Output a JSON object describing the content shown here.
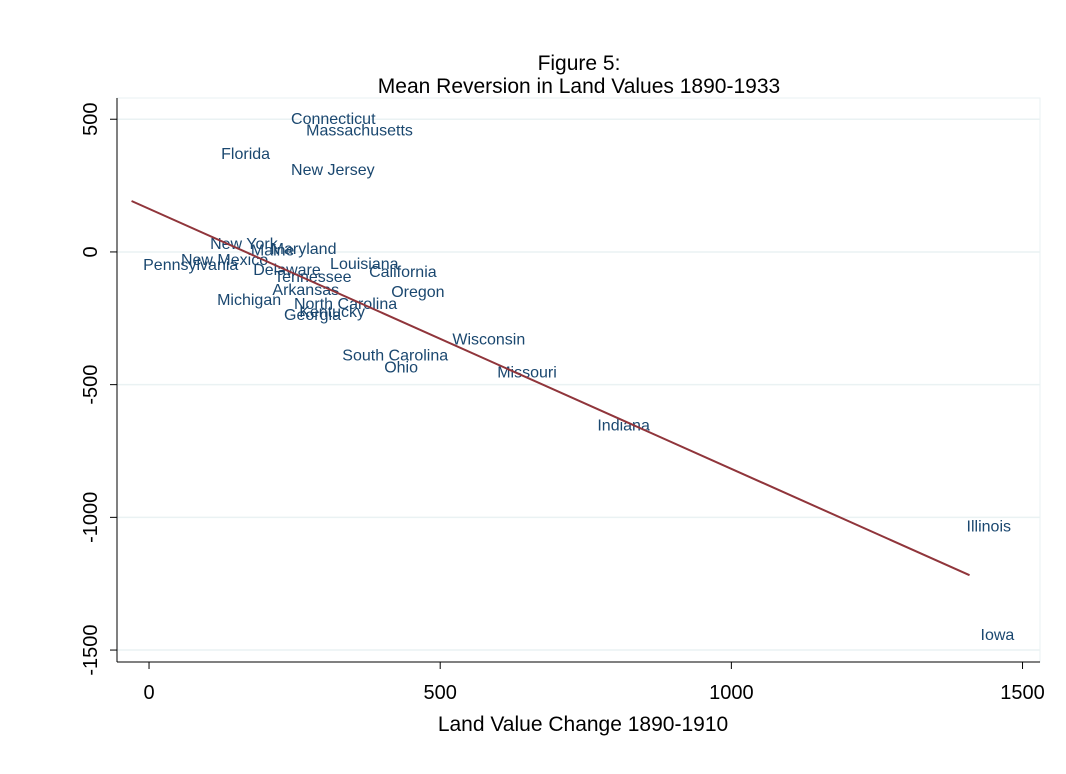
{
  "chart_data": {
    "type": "scatter",
    "title": "Figure 5:",
    "subtitle": "Mean Reversion in Land Values 1890-1933",
    "x_label": "Land Value Change 1890-1910",
    "xlim": [
      -55,
      1530
    ],
    "ylim": [
      -1545,
      580
    ],
    "xticks": [
      0,
      500,
      1000,
      1500
    ],
    "yticks": [
      -1500,
      -1000,
      -500,
      0,
      500
    ],
    "grid": true,
    "label_color": "#1a476f",
    "points": {
      "labels": [
        "Connecticut",
        "Massachusetts",
        "Florida",
        "New Jersey",
        "New York",
        "Maine",
        "Maryland",
        "New Mexico",
        "Pennsylvania",
        "Delaware",
        "Louisiana",
        "California",
        "Tennessee",
        "Arkansas",
        "Oregon",
        "Michigan",
        "North Carolina",
        "Kentucky",
        "Georgia",
        "Wisconsin",
        "South Carolina",
        "Ohio",
        "Missouri",
        "Indiana",
        "Illinois",
        "Iowa"
      ],
      "x": [
        237,
        263,
        117,
        237,
        98,
        168,
        202,
        48,
        -17,
        172,
        304,
        371,
        208,
        205,
        409,
        110,
        242,
        251,
        225,
        514,
        325,
        397,
        591,
        763,
        1397,
        1421
      ],
      "y": [
        504,
        462,
        372,
        312,
        34,
        10,
        14,
        -26,
        -45,
        -64,
        -41,
        -71,
        -90,
        -139,
        -147,
        -177,
        -192,
        -222,
        -233,
        -327,
        -387,
        -432,
        -451,
        -650,
        -1030,
        -1440
      ]
    },
    "fit": {
      "color": "#90353b",
      "x": [
        -30,
        1409
      ],
      "y": [
        192,
        -1218
      ]
    }
  }
}
